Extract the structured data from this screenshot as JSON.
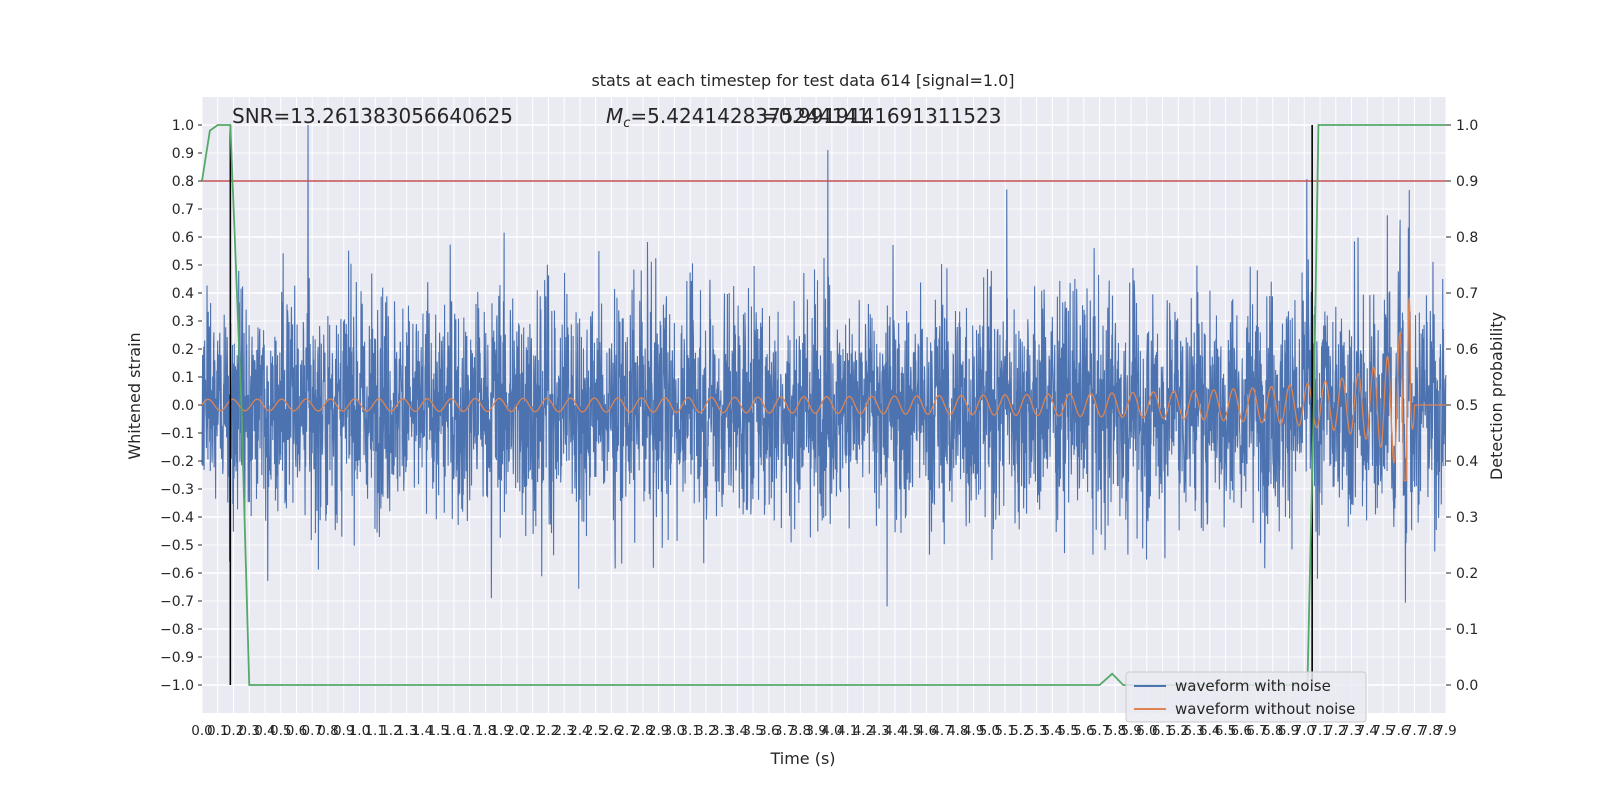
{
  "chart_data": {
    "type": "line",
    "title": "stats at each timestep for test data 614 [signal=1.0]",
    "xlabel": "Time (s)",
    "ylabel": "Whitened strain",
    "y2label": "Detection probability",
    "xlim": [
      0.0,
      7.9
    ],
    "ylim": [
      -1.1,
      1.1
    ],
    "y2lim": [
      -0.05,
      1.05
    ],
    "xticks": [
      "0.0",
      "0.1",
      "0.2",
      "0.3",
      "0.4",
      "0.5",
      "0.6",
      "0.7",
      "0.8",
      "0.9",
      "1.0",
      "1.1",
      "1.2",
      "1.3",
      "1.4",
      "1.5",
      "1.6",
      "1.7",
      "1.8",
      "1.9",
      "2.0",
      "2.1",
      "2.2",
      "2.3",
      "2.4",
      "2.5",
      "2.6",
      "2.7",
      "2.8",
      "2.9",
      "3.0",
      "3.1",
      "3.2",
      "3.3",
      "3.4",
      "3.5",
      "3.6",
      "3.7",
      "3.8",
      "3.9",
      "4.0",
      "4.1",
      "4.2",
      "4.3",
      "4.4",
      "4.5",
      "4.6",
      "4.7",
      "4.8",
      "4.9",
      "5.0",
      "5.1",
      "5.2",
      "5.3",
      "5.4",
      "5.5",
      "5.6",
      "5.7",
      "5.8",
      "5.9",
      "6.0",
      "6.1",
      "6.2",
      "6.3",
      "6.4",
      "6.5",
      "6.6",
      "6.7",
      "6.8",
      "6.9",
      "7.0",
      "7.1",
      "7.2",
      "7.3",
      "7.4",
      "7.5",
      "7.6",
      "7.7",
      "7.8",
      "7.9"
    ],
    "yticks": [
      "1.0",
      "0.9",
      "0.8",
      "0.7",
      "0.6",
      "0.5",
      "0.4",
      "0.3",
      "0.2",
      "0.1",
      "0.0",
      "−0.1",
      "−0.2",
      "−0.3",
      "−0.4",
      "−0.5",
      "−0.6",
      "−0.7",
      "−0.8",
      "−0.9",
      "−1.0"
    ],
    "y2ticks": [
      "1.0",
      "0.9",
      "0.8",
      "0.7",
      "0.6",
      "0.5",
      "0.4",
      "0.3",
      "0.2",
      "0.1",
      "0.0"
    ],
    "grid": true,
    "legend_position": "lower-right",
    "annotations": {
      "snr": "SNR=13.261383056640625",
      "mc": "=5.4241428375244141",
      "mc_symbol": "M",
      "mc_subscript": "c",
      "q": "=0.9919141691311523"
    },
    "threshold": {
      "y2": 0.9,
      "color": "#c44e52"
    },
    "vlines": [
      0.18,
      7.05
    ],
    "series": [
      {
        "name": "waveform with noise",
        "color": "#4c72b0",
        "axis": "left",
        "envelope_typical": 0.4,
        "envelope_peak": 1.0
      },
      {
        "name": "waveform without noise",
        "color": "#dd8452",
        "axis": "left",
        "chirp": {
          "t_start": 0.0,
          "t_merger": 7.68,
          "base_amplitude": 0.02,
          "peak_positive": 0.38,
          "peak_negative": -0.27
        }
      },
      {
        "name": "",
        "color": "#55a868",
        "axis": "right",
        "x": [
          0.0,
          0.05,
          0.1,
          0.15,
          0.18,
          0.25,
          0.3,
          5.7,
          5.78,
          5.85,
          7.02,
          7.06,
          7.09,
          7.9
        ],
        "y": [
          0.9,
          0.99,
          1.0,
          1.0,
          1.0,
          0.5,
          0.0,
          0.0,
          0.02,
          0.0,
          0.0,
          0.5,
          1.0,
          1.0
        ]
      }
    ],
    "legend": [
      {
        "label": "waveform with noise",
        "color": "#4c72b0"
      },
      {
        "label": "waveform without noise",
        "color": "#dd8452"
      }
    ],
    "colors": {
      "plot_bg": "#eaeaf2",
      "grid": "#ffffff",
      "vline": "#000000"
    }
  }
}
